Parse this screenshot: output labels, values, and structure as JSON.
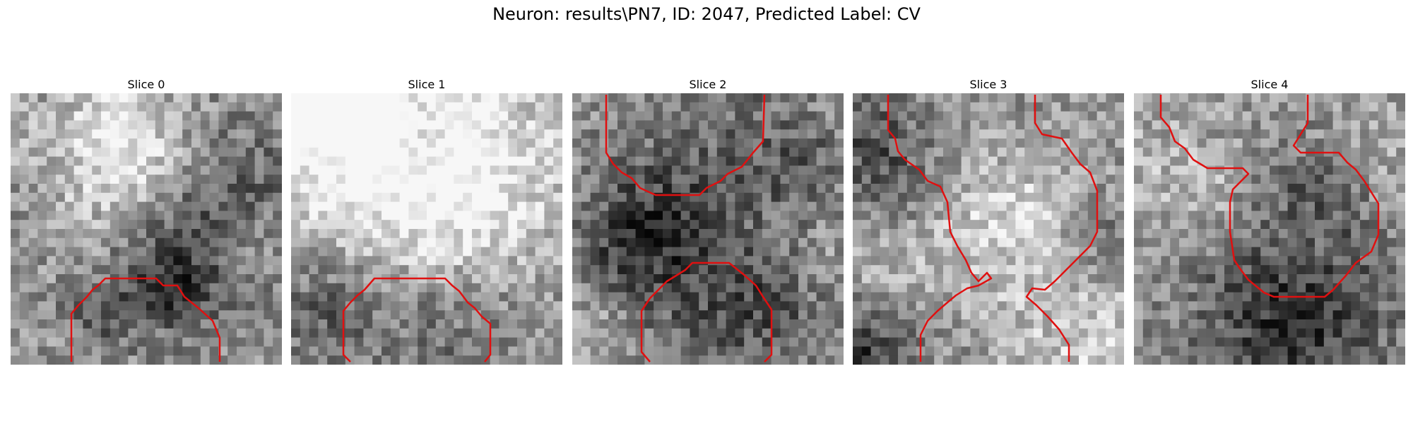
{
  "figure": {
    "title": "Neuron: results\\PN7, ID: 2047, Predicted Label: CV"
  },
  "contour_color": "#e01010",
  "panels": [
    {
      "title": "Slice 0"
    },
    {
      "title": "Slice 1"
    },
    {
      "title": "Slice 2"
    },
    {
      "title": "Slice 3"
    },
    {
      "title": "Slice 4"
    }
  ]
}
